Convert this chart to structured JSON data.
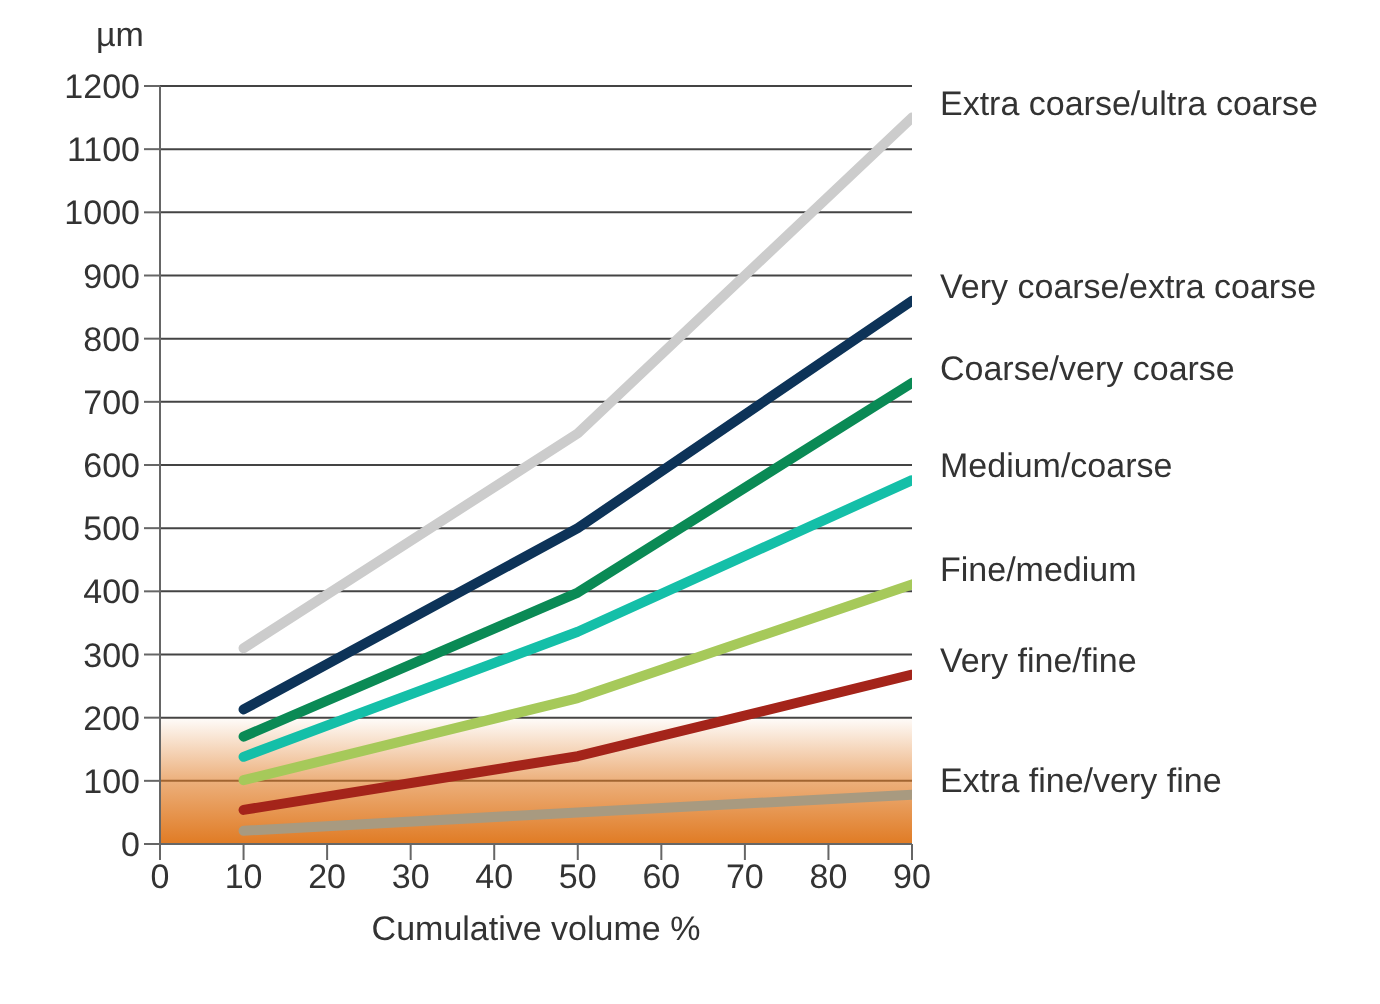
{
  "chart_data": {
    "type": "line",
    "ylabel": "µm",
    "xlabel": "Cumulative volume %",
    "xlim": [
      0,
      90
    ],
    "xticks": [
      0,
      10,
      20,
      30,
      40,
      50,
      60,
      70,
      80,
      90
    ],
    "ylim": [
      0,
      1200
    ],
    "yticks": [
      0,
      100,
      200,
      300,
      400,
      500,
      600,
      700,
      800,
      900,
      1000,
      1100,
      1200
    ],
    "grid": "y",
    "marker": "none",
    "line_style": "solid",
    "bands": [
      {
        "axis": "y",
        "from": 0,
        "to": 200,
        "color": "#e07b24"
      }
    ],
    "series": [
      {
        "name": "Extra coarse/ultra coarse",
        "color": "#cccccc",
        "x": [
          10,
          50,
          90
        ],
        "values": [
          310,
          650,
          1150
        ]
      },
      {
        "name": "Very coarse/extra coarse",
        "color": "#0d3358",
        "x": [
          10,
          50,
          90
        ],
        "values": [
          213,
          500,
          860
        ]
      },
      {
        "name": "Coarse/very coarse",
        "color": "#0a8a55",
        "x": [
          10,
          50,
          90
        ],
        "values": [
          170,
          398,
          730
        ]
      },
      {
        "name": "Medium/coarse",
        "color": "#14bfa8",
        "x": [
          10,
          50,
          90
        ],
        "values": [
          138,
          336,
          576
        ]
      },
      {
        "name": "Fine/medium",
        "color": "#a6c95a",
        "x": [
          10,
          50,
          90
        ],
        "values": [
          101,
          231,
          411
        ]
      },
      {
        "name": "Very fine/fine",
        "color": "#a4241a",
        "x": [
          10,
          50,
          90
        ],
        "values": [
          54,
          139,
          268
        ]
      },
      {
        "name": "Extra fine/very fine",
        "color": "#a89a80",
        "x": [
          10,
          50,
          90
        ],
        "values": [
          21,
          50,
          78
        ]
      }
    ]
  }
}
